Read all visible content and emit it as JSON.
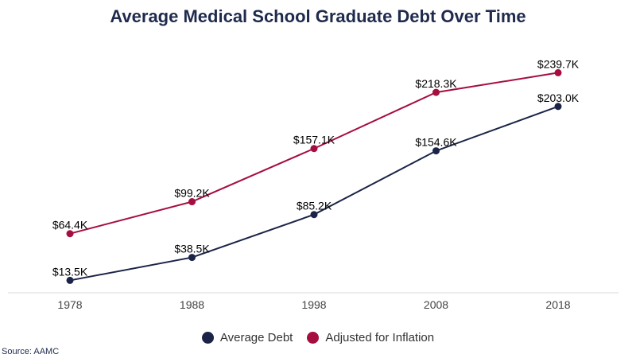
{
  "title": "Average Medical School Graduate Debt Over Time",
  "source": "Source: AAMC",
  "colors": {
    "average": "#1b2447",
    "inflation": "#a50e3e",
    "axis": "#d9d9d9"
  },
  "chart_data": {
    "type": "line",
    "title": "Average Medical School Graduate Debt Over Time",
    "categories": [
      "1978",
      "1988",
      "1998",
      "2008",
      "2018"
    ],
    "ylim": [
      0,
      260
    ],
    "grid": false,
    "legend": "bottom",
    "series": [
      {
        "name": "Average Debt",
        "color": "#1b2447",
        "values": [
          13.5,
          38.5,
          85.2,
          154.6,
          203.0
        ],
        "labels": [
          "$13.5K",
          "$38.5K",
          "$85.2K",
          "$154.6K",
          "$203.0K"
        ]
      },
      {
        "name": "Adjusted for Inflation",
        "color": "#a50e3e",
        "values": [
          64.4,
          99.2,
          157.1,
          218.3,
          239.7
        ],
        "labels": [
          "$64.4K",
          "$99.2K",
          "$157.1K",
          "$218.3K",
          "$239.7K"
        ]
      }
    ]
  }
}
